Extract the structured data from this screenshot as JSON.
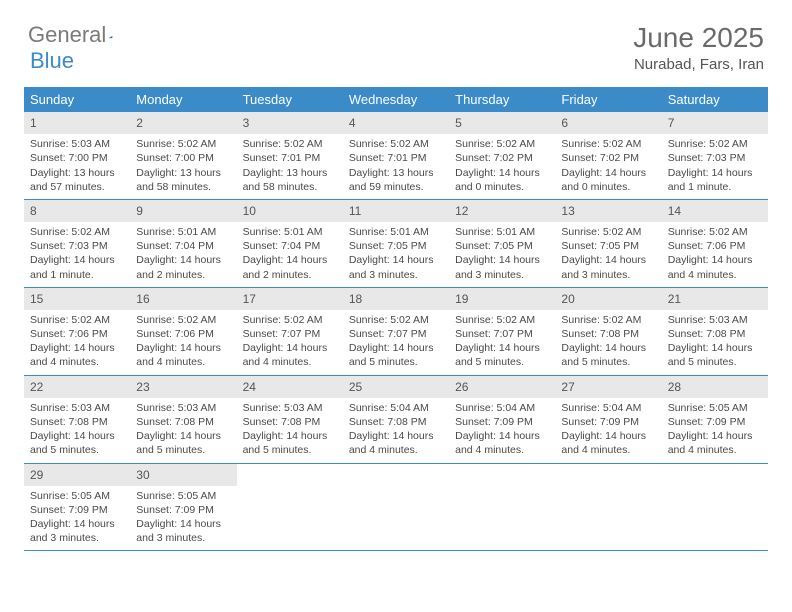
{
  "logo": {
    "text_gray": "General",
    "text_blue": "Blue"
  },
  "header": {
    "month": "June 2025",
    "location": "Nurabad, Fars, Iran"
  },
  "weekdays": [
    "Sunday",
    "Monday",
    "Tuesday",
    "Wednesday",
    "Thursday",
    "Friday",
    "Saturday"
  ],
  "colors": {
    "header_blue": "#3b8bc9",
    "daynum_bg": "#e8e8e8",
    "text": "#4a4a4a",
    "border_blue": "#3b8bc9"
  },
  "weeks": [
    [
      {
        "n": "1",
        "sunrise": "Sunrise: 5:03 AM",
        "sunset": "Sunset: 7:00 PM",
        "day1": "Daylight: 13 hours",
        "day2": "and 57 minutes."
      },
      {
        "n": "2",
        "sunrise": "Sunrise: 5:02 AM",
        "sunset": "Sunset: 7:00 PM",
        "day1": "Daylight: 13 hours",
        "day2": "and 58 minutes."
      },
      {
        "n": "3",
        "sunrise": "Sunrise: 5:02 AM",
        "sunset": "Sunset: 7:01 PM",
        "day1": "Daylight: 13 hours",
        "day2": "and 58 minutes."
      },
      {
        "n": "4",
        "sunrise": "Sunrise: 5:02 AM",
        "sunset": "Sunset: 7:01 PM",
        "day1": "Daylight: 13 hours",
        "day2": "and 59 minutes."
      },
      {
        "n": "5",
        "sunrise": "Sunrise: 5:02 AM",
        "sunset": "Sunset: 7:02 PM",
        "day1": "Daylight: 14 hours",
        "day2": "and 0 minutes."
      },
      {
        "n": "6",
        "sunrise": "Sunrise: 5:02 AM",
        "sunset": "Sunset: 7:02 PM",
        "day1": "Daylight: 14 hours",
        "day2": "and 0 minutes."
      },
      {
        "n": "7",
        "sunrise": "Sunrise: 5:02 AM",
        "sunset": "Sunset: 7:03 PM",
        "day1": "Daylight: 14 hours",
        "day2": "and 1 minute."
      }
    ],
    [
      {
        "n": "8",
        "sunrise": "Sunrise: 5:02 AM",
        "sunset": "Sunset: 7:03 PM",
        "day1": "Daylight: 14 hours",
        "day2": "and 1 minute."
      },
      {
        "n": "9",
        "sunrise": "Sunrise: 5:01 AM",
        "sunset": "Sunset: 7:04 PM",
        "day1": "Daylight: 14 hours",
        "day2": "and 2 minutes."
      },
      {
        "n": "10",
        "sunrise": "Sunrise: 5:01 AM",
        "sunset": "Sunset: 7:04 PM",
        "day1": "Daylight: 14 hours",
        "day2": "and 2 minutes."
      },
      {
        "n": "11",
        "sunrise": "Sunrise: 5:01 AM",
        "sunset": "Sunset: 7:05 PM",
        "day1": "Daylight: 14 hours",
        "day2": "and 3 minutes."
      },
      {
        "n": "12",
        "sunrise": "Sunrise: 5:01 AM",
        "sunset": "Sunset: 7:05 PM",
        "day1": "Daylight: 14 hours",
        "day2": "and 3 minutes."
      },
      {
        "n": "13",
        "sunrise": "Sunrise: 5:02 AM",
        "sunset": "Sunset: 7:05 PM",
        "day1": "Daylight: 14 hours",
        "day2": "and 3 minutes."
      },
      {
        "n": "14",
        "sunrise": "Sunrise: 5:02 AM",
        "sunset": "Sunset: 7:06 PM",
        "day1": "Daylight: 14 hours",
        "day2": "and 4 minutes."
      }
    ],
    [
      {
        "n": "15",
        "sunrise": "Sunrise: 5:02 AM",
        "sunset": "Sunset: 7:06 PM",
        "day1": "Daylight: 14 hours",
        "day2": "and 4 minutes."
      },
      {
        "n": "16",
        "sunrise": "Sunrise: 5:02 AM",
        "sunset": "Sunset: 7:06 PM",
        "day1": "Daylight: 14 hours",
        "day2": "and 4 minutes."
      },
      {
        "n": "17",
        "sunrise": "Sunrise: 5:02 AM",
        "sunset": "Sunset: 7:07 PM",
        "day1": "Daylight: 14 hours",
        "day2": "and 4 minutes."
      },
      {
        "n": "18",
        "sunrise": "Sunrise: 5:02 AM",
        "sunset": "Sunset: 7:07 PM",
        "day1": "Daylight: 14 hours",
        "day2": "and 5 minutes."
      },
      {
        "n": "19",
        "sunrise": "Sunrise: 5:02 AM",
        "sunset": "Sunset: 7:07 PM",
        "day1": "Daylight: 14 hours",
        "day2": "and 5 minutes."
      },
      {
        "n": "20",
        "sunrise": "Sunrise: 5:02 AM",
        "sunset": "Sunset: 7:08 PM",
        "day1": "Daylight: 14 hours",
        "day2": "and 5 minutes."
      },
      {
        "n": "21",
        "sunrise": "Sunrise: 5:03 AM",
        "sunset": "Sunset: 7:08 PM",
        "day1": "Daylight: 14 hours",
        "day2": "and 5 minutes."
      }
    ],
    [
      {
        "n": "22",
        "sunrise": "Sunrise: 5:03 AM",
        "sunset": "Sunset: 7:08 PM",
        "day1": "Daylight: 14 hours",
        "day2": "and 5 minutes."
      },
      {
        "n": "23",
        "sunrise": "Sunrise: 5:03 AM",
        "sunset": "Sunset: 7:08 PM",
        "day1": "Daylight: 14 hours",
        "day2": "and 5 minutes."
      },
      {
        "n": "24",
        "sunrise": "Sunrise: 5:03 AM",
        "sunset": "Sunset: 7:08 PM",
        "day1": "Daylight: 14 hours",
        "day2": "and 5 minutes."
      },
      {
        "n": "25",
        "sunrise": "Sunrise: 5:04 AM",
        "sunset": "Sunset: 7:08 PM",
        "day1": "Daylight: 14 hours",
        "day2": "and 4 minutes."
      },
      {
        "n": "26",
        "sunrise": "Sunrise: 5:04 AM",
        "sunset": "Sunset: 7:09 PM",
        "day1": "Daylight: 14 hours",
        "day2": "and 4 minutes."
      },
      {
        "n": "27",
        "sunrise": "Sunrise: 5:04 AM",
        "sunset": "Sunset: 7:09 PM",
        "day1": "Daylight: 14 hours",
        "day2": "and 4 minutes."
      },
      {
        "n": "28",
        "sunrise": "Sunrise: 5:05 AM",
        "sunset": "Sunset: 7:09 PM",
        "day1": "Daylight: 14 hours",
        "day2": "and 4 minutes."
      }
    ],
    [
      {
        "n": "29",
        "sunrise": "Sunrise: 5:05 AM",
        "sunset": "Sunset: 7:09 PM",
        "day1": "Daylight: 14 hours",
        "day2": "and 3 minutes."
      },
      {
        "n": "30",
        "sunrise": "Sunrise: 5:05 AM",
        "sunset": "Sunset: 7:09 PM",
        "day1": "Daylight: 14 hours",
        "day2": "and 3 minutes."
      },
      null,
      null,
      null,
      null,
      null
    ]
  ]
}
